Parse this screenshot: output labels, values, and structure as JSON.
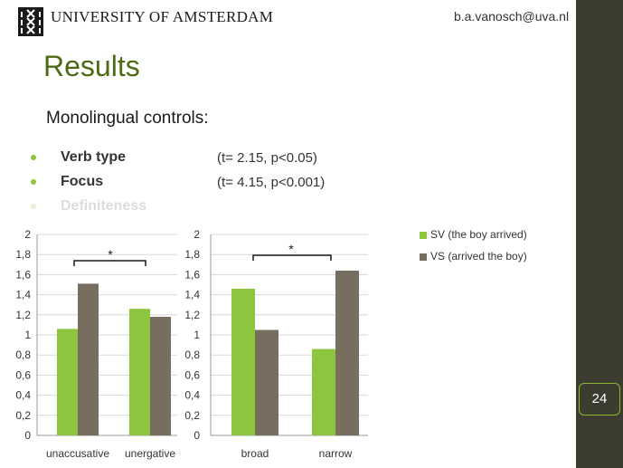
{
  "header": {
    "university": "UNIVERSITY OF AMSTERDAM",
    "email": "b.a.vanosch@uva.nl"
  },
  "slide": {
    "title": "Results",
    "subtitle": "Monolingual controls:",
    "page_number": "24",
    "bullets": [
      {
        "label": "Verb type",
        "stat": "(t= 2.15, p<0.05)"
      },
      {
        "label": "Focus",
        "stat": "(t= 4.15, p<0.001)"
      },
      {
        "label": "Definiteness",
        "stat": ""
      }
    ]
  },
  "colors": {
    "sv": "#8cc63f",
    "vs": "#776e60",
    "accent": "#4d6b14",
    "sidebar": "#3d3c30"
  },
  "chart_data": [
    {
      "type": "bar",
      "categories": [
        "unaccusative",
        "unergative"
      ],
      "series": [
        {
          "name": "SV (the boy arrived)",
          "values": [
            1.06,
            1.26
          ]
        },
        {
          "name": "VS (arrived the boy)",
          "values": [
            1.51,
            1.18
          ]
        }
      ],
      "ylim": [
        0,
        2
      ],
      "yticks": [
        "0",
        "0,2",
        "0,4",
        "0,6",
        "0,8",
        "1",
        "1,2",
        "1,4",
        "1,6",
        "1,8",
        "2"
      ],
      "annotation": "*",
      "grid": true
    },
    {
      "type": "bar",
      "categories": [
        "broad",
        "narrow"
      ],
      "series": [
        {
          "name": "SV (the boy arrived)",
          "values": [
            1.46,
            0.86
          ]
        },
        {
          "name": "VS (arrived the boy)",
          "values": [
            1.05,
            1.64
          ]
        }
      ],
      "ylim": [
        0,
        2
      ],
      "yticks": [
        "0",
        "0,2",
        "0,4",
        "0,6",
        "0,8",
        "1",
        "1,2",
        "1,4",
        "1,6",
        "1,8",
        "2"
      ],
      "annotation": "*",
      "grid": true
    }
  ],
  "legend": [
    {
      "label": "SV (the boy arrived)"
    },
    {
      "label": "VS (arrived the boy)"
    }
  ]
}
